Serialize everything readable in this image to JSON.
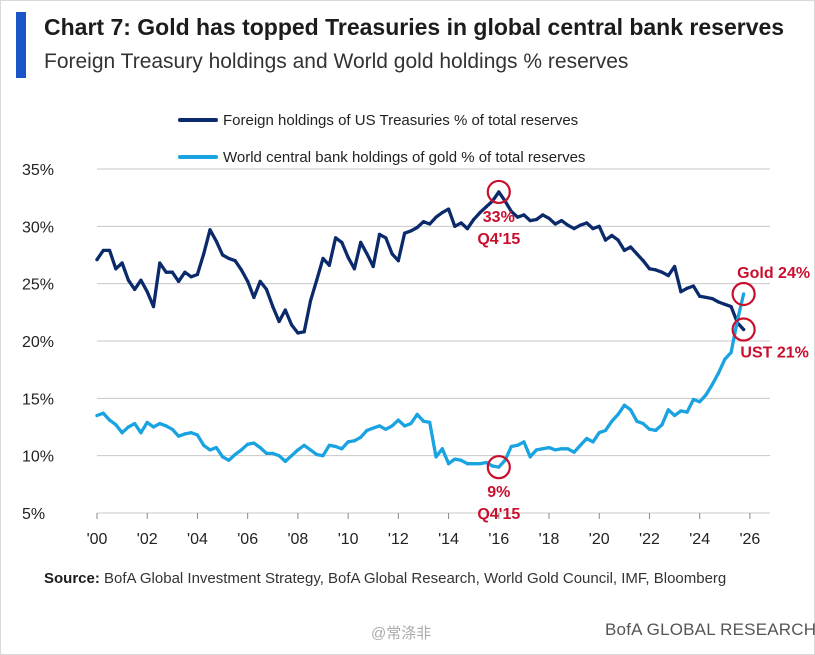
{
  "title": "Chart 7: Gold has topped Treasuries in global central bank reserves",
  "subtitle": "Foreign Treasury holdings and World gold holdings % reserves",
  "colors": {
    "accent": "#1a55c8",
    "treasury": "#0b2a6b",
    "gold": "#19a3e0",
    "annotation": "#c8102e",
    "grid": "#c8c8c8"
  },
  "source_label": "Source:",
  "source_text": "BofA Global Investment Strategy, BofA Global Research, World Gold Council, IMF, Bloomberg",
  "watermark": "@常涤非",
  "brand": "BofA GLOBAL RESEARCH",
  "chart_data": {
    "type": "line",
    "title": "Foreign Treasury holdings and World gold holdings % reserves",
    "xlabel": "",
    "ylabel": "",
    "xlim": [
      2000,
      2026.8
    ],
    "ylim": [
      5,
      35
    ],
    "grid": true,
    "legend_position": "top-center",
    "x_ticks": [
      2000,
      2002,
      2004,
      2006,
      2008,
      2010,
      2012,
      2014,
      2016,
      2018,
      2020,
      2022,
      2024,
      2026
    ],
    "x_tick_labels": [
      "'00",
      "'02",
      "'04",
      "'06",
      "'08",
      "'10",
      "'12",
      "'14",
      "'16",
      "'18",
      "'20",
      "'22",
      "'24",
      "'26"
    ],
    "y_ticks": [
      5,
      10,
      15,
      20,
      25,
      30,
      35
    ],
    "y_tick_labels": [
      "5%",
      "10%",
      "15%",
      "20%",
      "25%",
      "30%",
      "35%"
    ],
    "series": [
      {
        "name": "Foreign holdings of US Treasuries % of total reserves",
        "color": "#0b2a6b",
        "x": [
          2000.0,
          2000.25,
          2000.5,
          2000.75,
          2001.0,
          2001.25,
          2001.5,
          2001.75,
          2002.0,
          2002.25,
          2002.5,
          2002.75,
          2003.0,
          2003.25,
          2003.5,
          2003.75,
          2004.0,
          2004.25,
          2004.5,
          2004.75,
          2005.0,
          2005.25,
          2005.5,
          2005.75,
          2006.0,
          2006.25,
          2006.5,
          2006.75,
          2007.0,
          2007.25,
          2007.5,
          2007.75,
          2008.0,
          2008.25,
          2008.5,
          2008.75,
          2009.0,
          2009.25,
          2009.5,
          2009.75,
          2010.0,
          2010.25,
          2010.5,
          2010.75,
          2011.0,
          2011.25,
          2011.5,
          2011.75,
          2012.0,
          2012.25,
          2012.5,
          2012.75,
          2013.0,
          2013.25,
          2013.5,
          2013.75,
          2014.0,
          2014.25,
          2014.5,
          2014.75,
          2015.0,
          2015.25,
          2015.5,
          2015.75,
          2016.0,
          2016.25,
          2016.5,
          2016.75,
          2017.0,
          2017.25,
          2017.5,
          2017.75,
          2018.0,
          2018.25,
          2018.5,
          2018.75,
          2019.0,
          2019.25,
          2019.5,
          2019.75,
          2020.0,
          2020.25,
          2020.5,
          2020.75,
          2021.0,
          2021.25,
          2021.5,
          2021.75,
          2022.0,
          2022.25,
          2022.5,
          2022.75,
          2023.0,
          2023.25,
          2023.5,
          2023.75,
          2024.0,
          2024.25,
          2024.5,
          2024.75,
          2025.0,
          2025.25,
          2025.5,
          2025.75
        ],
        "values": [
          27.1,
          27.9,
          27.9,
          26.3,
          26.8,
          25.3,
          24.5,
          25.3,
          24.3,
          23.0,
          26.8,
          26.0,
          26.0,
          25.2,
          26.0,
          25.6,
          25.8,
          27.6,
          29.7,
          28.7,
          27.5,
          27.2,
          27.0,
          26.2,
          25.2,
          23.8,
          25.2,
          24.5,
          23.0,
          21.7,
          22.7,
          21.4,
          20.7,
          20.8,
          23.5,
          25.3,
          27.2,
          26.6,
          29.0,
          28.6,
          27.3,
          26.3,
          28.6,
          27.6,
          26.5,
          29.3,
          29.0,
          27.6,
          27.0,
          29.4,
          29.6,
          29.9,
          30.4,
          30.2,
          30.8,
          31.2,
          31.5,
          30.0,
          30.3,
          29.8,
          30.6,
          31.2,
          31.7,
          32.2,
          33.0,
          32.2,
          31.3,
          30.8,
          31.0,
          30.5,
          30.6,
          31.0,
          30.7,
          30.2,
          30.5,
          30.1,
          29.8,
          30.1,
          30.3,
          29.8,
          30.0,
          28.8,
          29.2,
          28.8,
          27.9,
          28.2,
          27.6,
          27.0,
          26.3,
          26.2,
          26.0,
          25.7,
          26.5,
          24.3,
          24.6,
          24.8,
          23.9,
          23.8,
          23.7,
          23.4,
          23.2,
          23.0,
          21.6,
          21.0
        ]
      },
      {
        "name": "World central bank holdings of gold % of total reserves",
        "color": "#19a3e0",
        "x": [
          2000.0,
          2000.25,
          2000.5,
          2000.75,
          2001.0,
          2001.25,
          2001.5,
          2001.75,
          2002.0,
          2002.25,
          2002.5,
          2002.75,
          2003.0,
          2003.25,
          2003.5,
          2003.75,
          2004.0,
          2004.25,
          2004.5,
          2004.75,
          2005.0,
          2005.25,
          2005.5,
          2005.75,
          2006.0,
          2006.25,
          2006.5,
          2006.75,
          2007.0,
          2007.25,
          2007.5,
          2007.75,
          2008.0,
          2008.25,
          2008.5,
          2008.75,
          2009.0,
          2009.25,
          2009.5,
          2009.75,
          2010.0,
          2010.25,
          2010.5,
          2010.75,
          2011.0,
          2011.25,
          2011.5,
          2011.75,
          2012.0,
          2012.25,
          2012.5,
          2012.75,
          2013.0,
          2013.25,
          2013.5,
          2013.75,
          2014.0,
          2014.25,
          2014.5,
          2014.75,
          2015.0,
          2015.25,
          2015.5,
          2015.75,
          2016.0,
          2016.25,
          2016.5,
          2016.75,
          2017.0,
          2017.25,
          2017.5,
          2017.75,
          2018.0,
          2018.25,
          2018.5,
          2018.75,
          2019.0,
          2019.25,
          2019.5,
          2019.75,
          2020.0,
          2020.25,
          2020.5,
          2020.75,
          2021.0,
          2021.25,
          2021.5,
          2021.75,
          2022.0,
          2022.25,
          2022.5,
          2022.75,
          2023.0,
          2023.25,
          2023.5,
          2023.75,
          2024.0,
          2024.25,
          2024.5,
          2024.75,
          2025.0,
          2025.25,
          2025.5,
          2025.75
        ],
        "values": [
          13.5,
          13.7,
          13.1,
          12.7,
          12.0,
          12.5,
          12.8,
          12.0,
          12.9,
          12.5,
          12.8,
          12.6,
          12.3,
          11.7,
          11.9,
          12.0,
          11.8,
          10.9,
          10.5,
          10.7,
          9.9,
          9.6,
          10.1,
          10.5,
          11.0,
          11.1,
          10.7,
          10.2,
          10.2,
          10.0,
          9.5,
          10.0,
          10.5,
          10.9,
          10.5,
          10.1,
          10.0,
          10.9,
          10.8,
          10.6,
          11.2,
          11.3,
          11.6,
          12.2,
          12.4,
          12.6,
          12.3,
          12.6,
          13.1,
          12.6,
          12.8,
          13.6,
          13.0,
          12.9,
          9.9,
          10.6,
          9.3,
          9.7,
          9.6,
          9.3,
          9.3,
          9.3,
          9.4,
          9.1,
          9.0,
          9.6,
          10.8,
          10.9,
          11.2,
          9.9,
          10.5,
          10.6,
          10.7,
          10.5,
          10.6,
          10.6,
          10.3,
          10.9,
          11.5,
          11.2,
          12.0,
          12.2,
          13.0,
          13.6,
          14.4,
          14.0,
          13.0,
          12.8,
          12.3,
          12.2,
          12.7,
          14.0,
          13.5,
          13.9,
          13.8,
          14.9,
          14.7,
          15.3,
          16.2,
          17.2,
          18.4,
          19.0,
          21.8,
          24.1
        ]
      }
    ],
    "annotations": [
      {
        "series": 0,
        "x": 2016.0,
        "y": 33.0,
        "text_line1": "33%",
        "text_line2": "Q4'15",
        "position": "below"
      },
      {
        "series": 1,
        "x": 2016.0,
        "y": 9.0,
        "text_line1": "9%",
        "text_line2": "Q4'15",
        "position": "below"
      },
      {
        "series": 1,
        "x": 2025.75,
        "y": 24.1,
        "text_line1": "Gold 24%",
        "text_line2": "",
        "position": "above"
      },
      {
        "series": 0,
        "x": 2025.75,
        "y": 21.0,
        "text_line1": "UST 21%",
        "text_line2": "",
        "position": "below"
      }
    ]
  }
}
